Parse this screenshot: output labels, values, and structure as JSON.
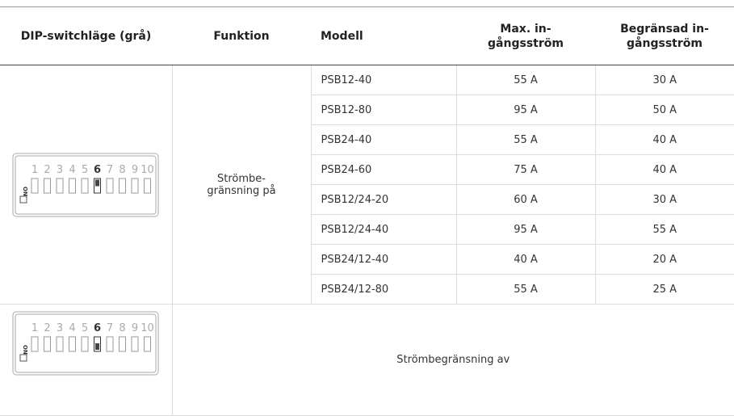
{
  "table": {
    "headers": [
      "DIP-switchläge (grå)",
      "Funktion",
      "Modell",
      "Max. in-\ngångsström",
      "Begränsad in-\ngångsström"
    ],
    "function_on": "Strömbe-\ngränsning på",
    "function_off": "Strömbegränsning av",
    "rows": [
      [
        "PSB12-40",
        "55 A",
        "30 A"
      ],
      [
        "PSB12-80",
        "95 A",
        "50 A"
      ],
      [
        "PSB24-40",
        "55 A",
        "40 A"
      ],
      [
        "PSB24-60",
        "75 A",
        "40 A"
      ],
      [
        "PSB12/24-20",
        "60 A",
        "30 A"
      ],
      [
        "PSB12/24-40",
        "95 A",
        "55 A"
      ],
      [
        "PSB24/12-40",
        "40 A",
        "20 A"
      ],
      [
        "PSB24/12-80",
        "55 A",
        "25 A"
      ]
    ]
  },
  "dip_switch": {
    "on_label": "ON",
    "numbers": [
      "1",
      "2",
      "3",
      "4",
      "5",
      "6",
      "7",
      "8",
      "9",
      "10"
    ]
  }
}
